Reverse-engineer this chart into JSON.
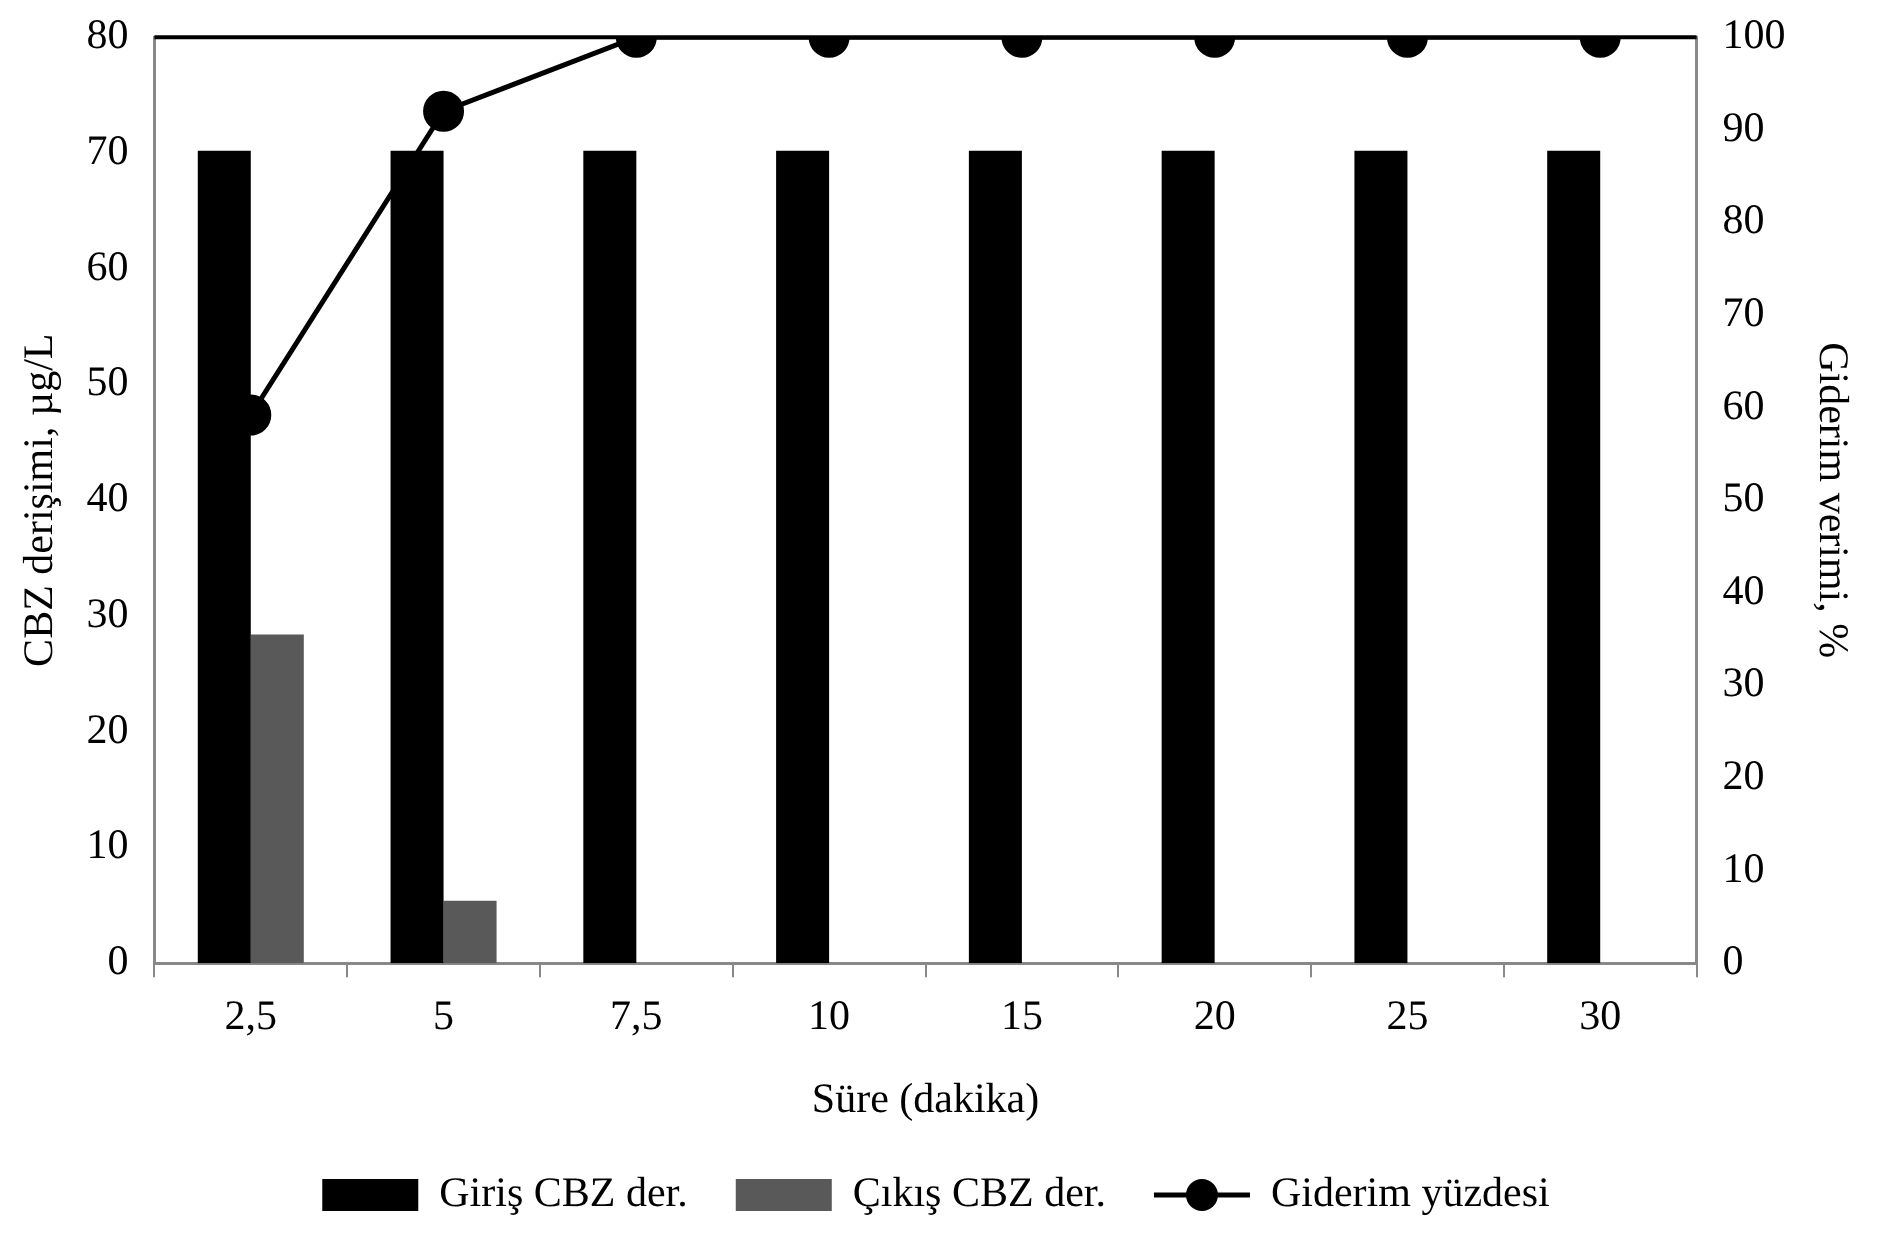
{
  "chart_data": {
    "type": "bar",
    "xlabel": "Süre (dakika)",
    "ylabel": "CBZ derişimi, µg/L",
    "y2label": "Giderim verimi, %",
    "categories": [
      "2,5",
      "5",
      "7,5",
      "10",
      "15",
      "20",
      "25",
      "30"
    ],
    "series": [
      {
        "name": "Giriş CBZ der.",
        "color": "#000000",
        "values": [
          70.2,
          70.2,
          70.2,
          70.2,
          70.2,
          70.2,
          70.2,
          70.2
        ]
      },
      {
        "name": "Çıkış CBZ der.",
        "color": "#595959",
        "values": [
          28.4,
          5.4,
          0,
          0,
          0,
          0,
          0,
          0
        ]
      },
      {
        "name": "Giderim yüzdesi",
        "type": "line",
        "axis": "y2",
        "color": "#000000",
        "values": [
          59.2,
          92,
          100,
          100,
          100,
          100,
          100,
          100
        ]
      }
    ],
    "ylim": [
      0,
      80
    ],
    "yticks": [
      0,
      10,
      20,
      30,
      40,
      50,
      60,
      70,
      80
    ],
    "y2lim": [
      0,
      100
    ],
    "y2ticks": [
      0,
      10,
      20,
      30,
      40,
      50,
      60,
      70,
      80,
      90,
      100
    ],
    "grid": false,
    "legend": "bottom",
    "marker": "circle",
    "line_style": "solid"
  }
}
